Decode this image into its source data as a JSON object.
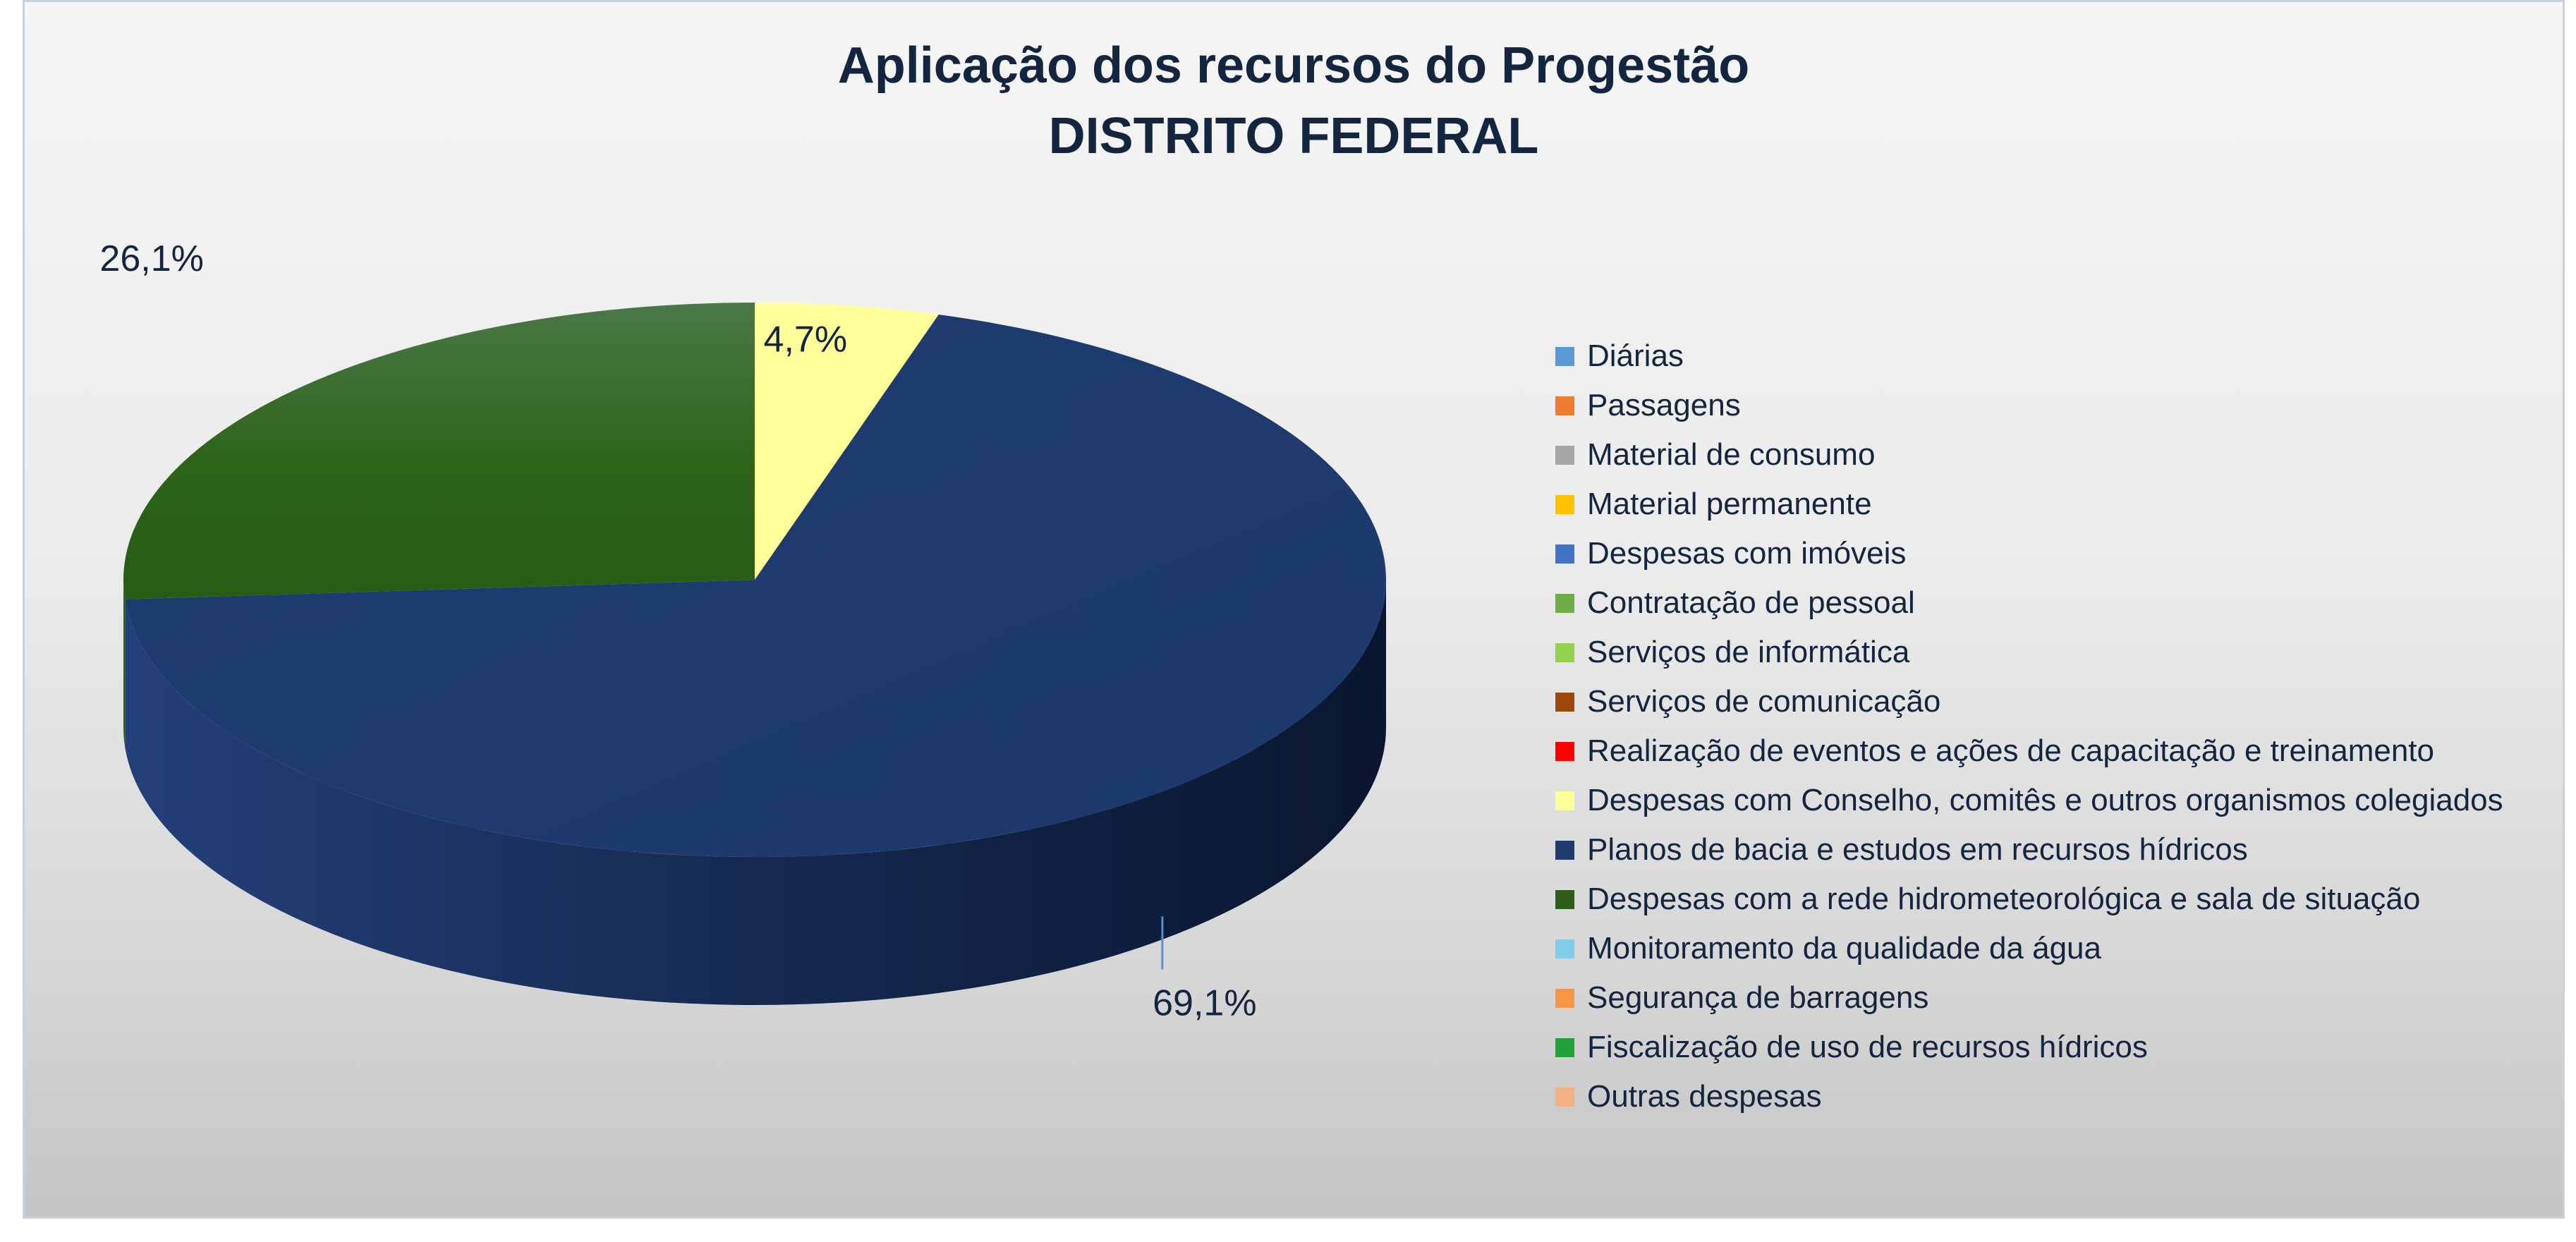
{
  "chart_data": {
    "type": "pie",
    "title": "Aplicação dos recursos do Progestão",
    "subtitle": "DISTRITO FEDERAL",
    "legend_position": "right",
    "categories": [
      "Diárias",
      "Passagens",
      "Material de consumo",
      "Material permanente",
      "Despesas com imóveis",
      "Contratação de pessoal",
      "Serviços de informática",
      "Serviços de comunicação",
      "Realização de eventos e ações de capacitação e treinamento",
      "Despesas com Conselho, comitês e outros organismos colegiados",
      "Planos de bacia e estudos em recursos hídricos",
      "Despesas com a rede hidrometeorológica e sala de situação",
      "Monitoramento da qualidade da água",
      "Segurança de barragens",
      "Fiscalização de uso de recursos hídricos",
      "Outras despesas"
    ],
    "values": [
      0,
      0,
      0,
      0,
      0,
      0,
      0,
      0,
      0,
      4.7,
      69.1,
      26.1,
      0,
      0,
      0,
      0
    ],
    "data_labels": [
      "",
      "",
      "",
      "",
      "",
      "",
      "",
      "",
      "",
      "4,7%",
      "69,1%",
      "26,1%",
      "",
      "",
      "",
      ""
    ],
    "colors": [
      "#5b9bd5",
      "#ed7d31",
      "#a5a5a5",
      "#ffc000",
      "#4472c4",
      "#70ad47",
      "#92d050",
      "#9e480e",
      "#ff0000",
      "#ffff99",
      "#1f3a6e",
      "#2e5e1a",
      "#7fcde8",
      "#f79646",
      "#21a339",
      "#f4b183"
    ]
  }
}
